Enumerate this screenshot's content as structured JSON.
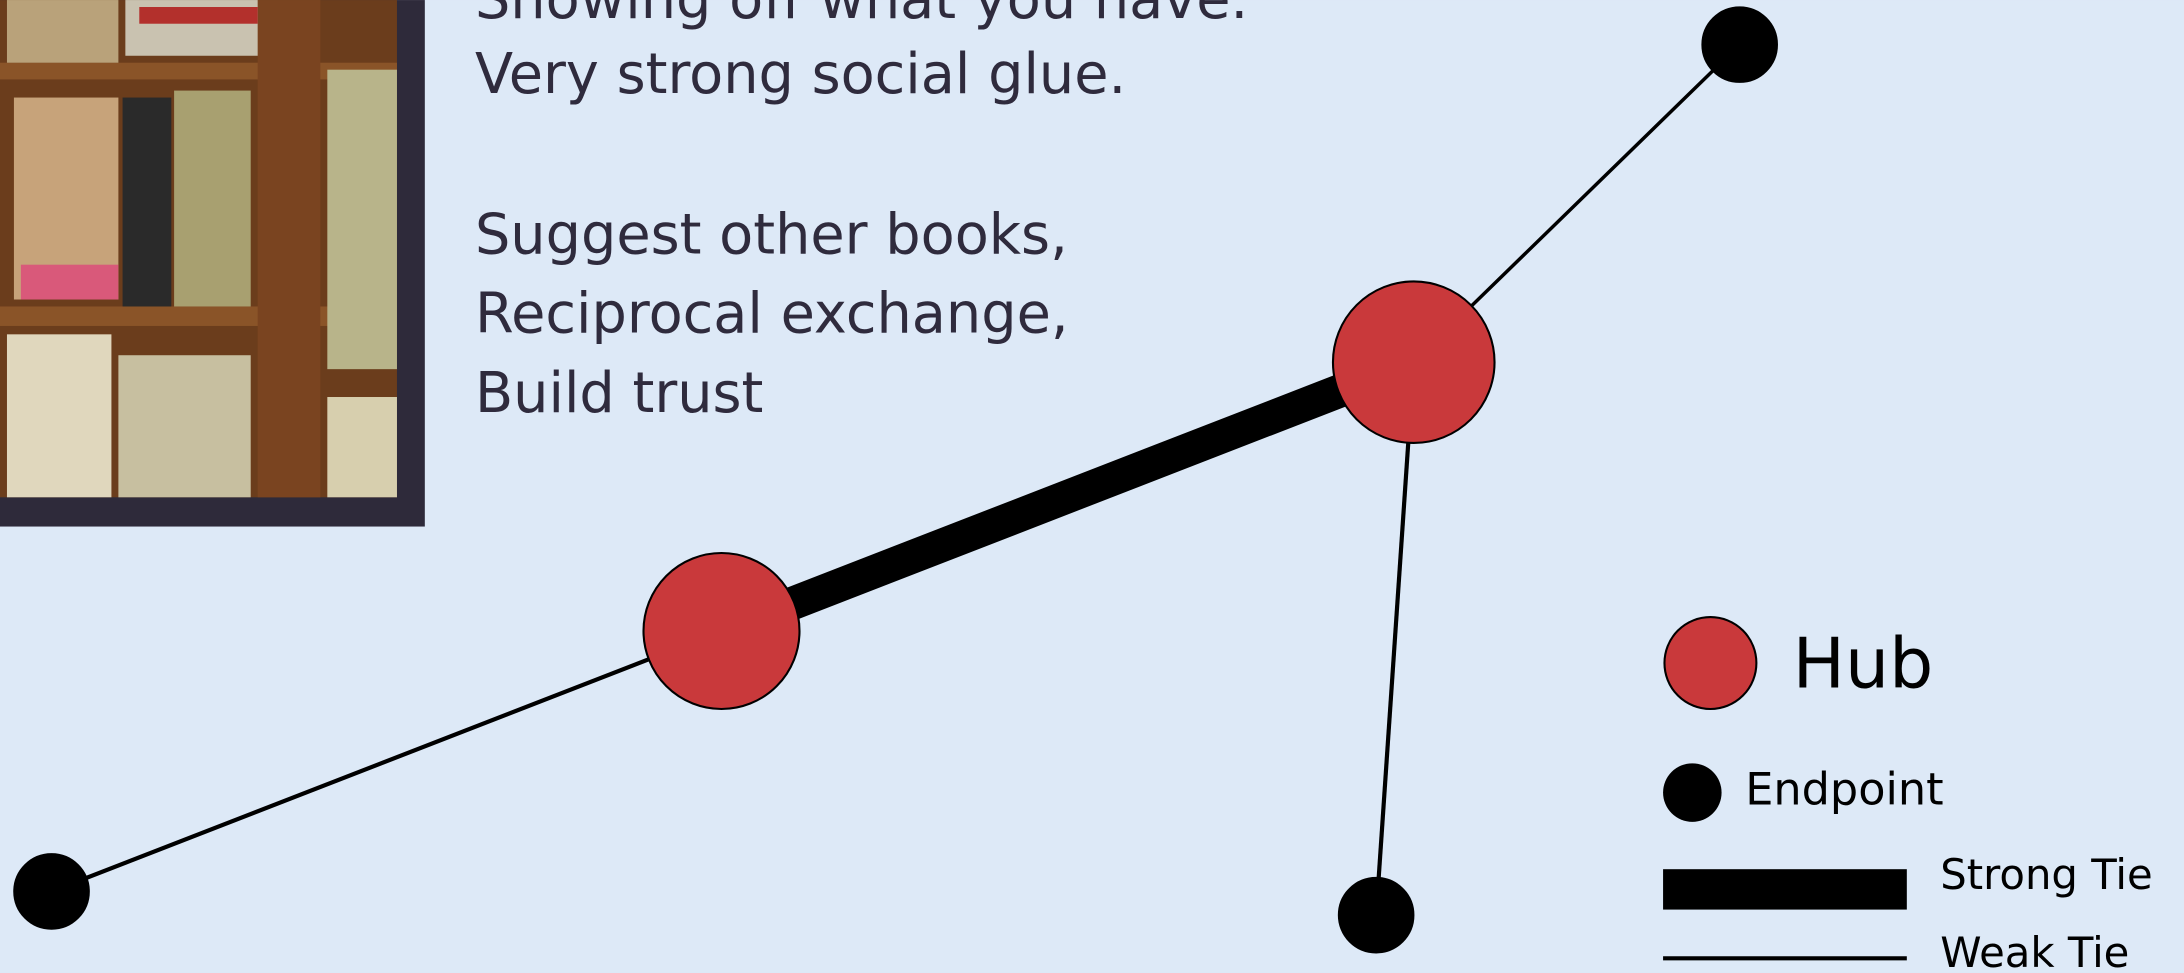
{
  "text": {
    "lines": [
      "Showing off what you have.",
      "Very strong social glue.",
      "Suggest other books,",
      "Reciprocal exchange,",
      "Build trust"
    ]
  },
  "legend": {
    "hub": "Hub",
    "endpoint": "Endpoint",
    "strong": "Strong Tie",
    "weak": "Weak Tie"
  }
}
